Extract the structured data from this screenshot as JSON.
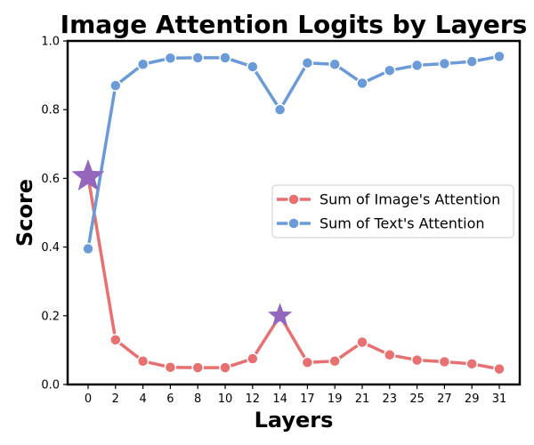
{
  "chart_data": {
    "type": "line",
    "title": "Image Attention Logits by Layers",
    "xlabel": "Layers",
    "ylabel": "Score",
    "categories": [
      "0",
      "2",
      "4",
      "6",
      "8",
      "10",
      "12",
      "14",
      "17",
      "19",
      "21",
      "23",
      "25",
      "27",
      "29",
      "31"
    ],
    "ylim": [
      0,
      1
    ],
    "yticks": [
      "0.0",
      "0.2",
      "0.4",
      "0.6",
      "0.8",
      "1.0"
    ],
    "grid": false,
    "legend_position": "center-right",
    "series": [
      {
        "name": "Sum of Image's Attention",
        "color": "#E87070",
        "values": [
          0.605,
          0.13,
          0.068,
          0.05,
          0.049,
          0.049,
          0.075,
          0.2,
          0.064,
          0.068,
          0.123,
          0.086,
          0.071,
          0.066,
          0.06,
          0.045
        ]
      },
      {
        "name": "Sum of Text's Attention",
        "color": "#6A9BD8",
        "values": [
          0.395,
          0.87,
          0.932,
          0.95,
          0.951,
          0.951,
          0.925,
          0.8,
          0.936,
          0.932,
          0.877,
          0.914,
          0.929,
          0.934,
          0.94,
          0.955
        ]
      }
    ],
    "highlights": [
      {
        "series": "Sum of Image's Attention",
        "category": "0",
        "value": 0.605,
        "marker": "star",
        "color": "#9467BD"
      },
      {
        "series": "Sum of Image's Attention",
        "category": "14",
        "value": 0.2,
        "marker": "star",
        "color": "#9467BD"
      }
    ]
  }
}
